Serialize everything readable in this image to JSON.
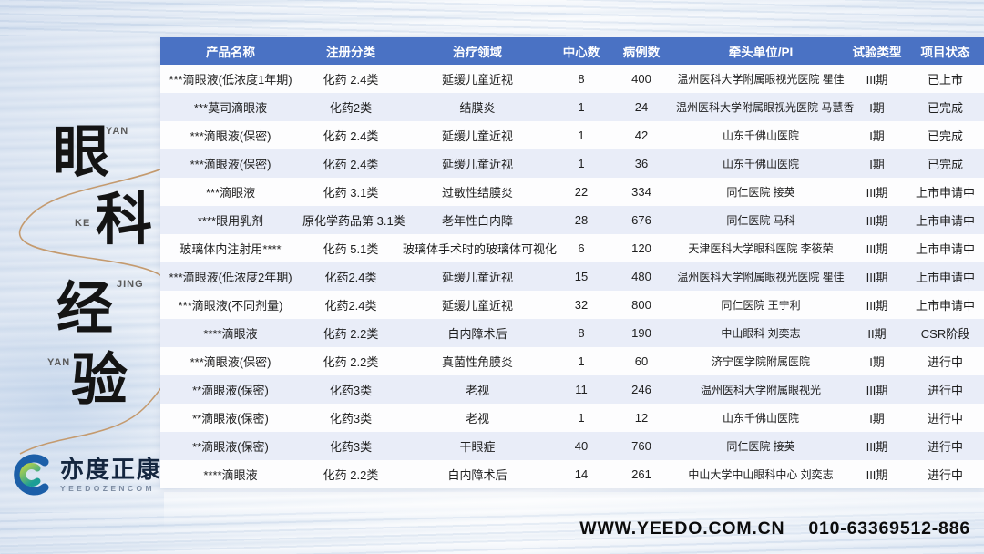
{
  "page": {
    "title_chars": [
      {
        "char": "眼",
        "pinyin": "YAN"
      },
      {
        "char": "科",
        "pinyin": "KE"
      },
      {
        "char": "经",
        "pinyin": "JING"
      },
      {
        "char": "验",
        "pinyin": "YAN"
      }
    ],
    "logo": {
      "name": "亦度正康",
      "sub": "YEEDOZENCOM"
    },
    "footer": {
      "website": "WWW.YEEDO.COM.CN",
      "phone": "010-63369512-886"
    }
  },
  "colors": {
    "header_bg": "#4a72c4",
    "row_stripe": "#e9edf8",
    "swoosh_line": "#c49a6e",
    "logo_blue": "#1c5fa8",
    "logo_green": "#9ec93f",
    "logo_teal": "#1b9e96"
  },
  "table": {
    "headers": [
      "产品名称",
      "注册分类",
      "治疗领域",
      "中心数",
      "病例数",
      "牵头单位/PI",
      "试验类型",
      "项目状态"
    ],
    "rows": [
      [
        "***滴眼液(低浓度1年期)",
        "化药 2.4类",
        "延缓儿童近视",
        "8",
        "400",
        "温州医科大学附属眼视光医院 瞿佳",
        "III期",
        "已上市"
      ],
      [
        "***莫司滴眼液",
        "化药2类",
        "结膜炎",
        "1",
        "24",
        "温州医科大学附属眼视光医院 马慧香",
        "I期",
        "已完成"
      ],
      [
        "***滴眼液(保密)",
        "化药 2.4类",
        "延缓儿童近视",
        "1",
        "42",
        "山东千佛山医院",
        "I期",
        "已完成"
      ],
      [
        "***滴眼液(保密)",
        "化药 2.4类",
        "延缓儿童近视",
        "1",
        "36",
        "山东千佛山医院",
        "I期",
        "已完成"
      ],
      [
        "***滴眼液",
        "化药 3.1类",
        "过敏性结膜炎",
        "22",
        "334",
        "同仁医院 接英",
        "III期",
        "上市申请中"
      ],
      [
        "****眼用乳剂",
        "原化学药品第 3.1类",
        "老年性白内障",
        "28",
        "676",
        "同仁医院 马科",
        "III期",
        "上市申请中"
      ],
      [
        "玻璃体内注射用****",
        "化药 5.1类",
        "玻璃体手术时的玻璃体可视化",
        "6",
        "120",
        "天津医科大学眼科医院 李筱荣",
        "III期",
        "上市申请中"
      ],
      [
        "***滴眼液(低浓度2年期)",
        "化药2.4类",
        "延缓儿童近视",
        "15",
        "480",
        "温州医科大学附属眼视光医院 瞿佳",
        "III期",
        "上市申请中"
      ],
      [
        "***滴眼液(不同剂量)",
        "化药2.4类",
        "延缓儿童近视",
        "32",
        "800",
        "同仁医院 王宁利",
        "III期",
        "上市申请中"
      ],
      [
        "****滴眼液",
        "化药 2.2类",
        "白内障术后",
        "8",
        "190",
        "中山眼科 刘奕志",
        "II期",
        "CSR阶段"
      ],
      [
        "***滴眼液(保密)",
        "化药 2.2类",
        "真菌性角膜炎",
        "1",
        "60",
        "济宁医学院附属医院",
        "I期",
        "进行中"
      ],
      [
        "**滴眼液(保密)",
        "化药3类",
        "老视",
        "11",
        "246",
        "温州医科大学附属眼视光",
        "III期",
        "进行中"
      ],
      [
        "**滴眼液(保密)",
        "化药3类",
        "老视",
        "1",
        "12",
        "山东千佛山医院",
        "I期",
        "进行中"
      ],
      [
        "**滴眼液(保密)",
        "化药3类",
        "干眼症",
        "40",
        "760",
        "同仁医院 接英",
        "III期",
        "进行中"
      ],
      [
        "****滴眼液",
        "化药 2.2类",
        "白内障术后",
        "14",
        "261",
        "中山大学中山眼科中心 刘奕志",
        "III期",
        "进行中"
      ]
    ]
  }
}
